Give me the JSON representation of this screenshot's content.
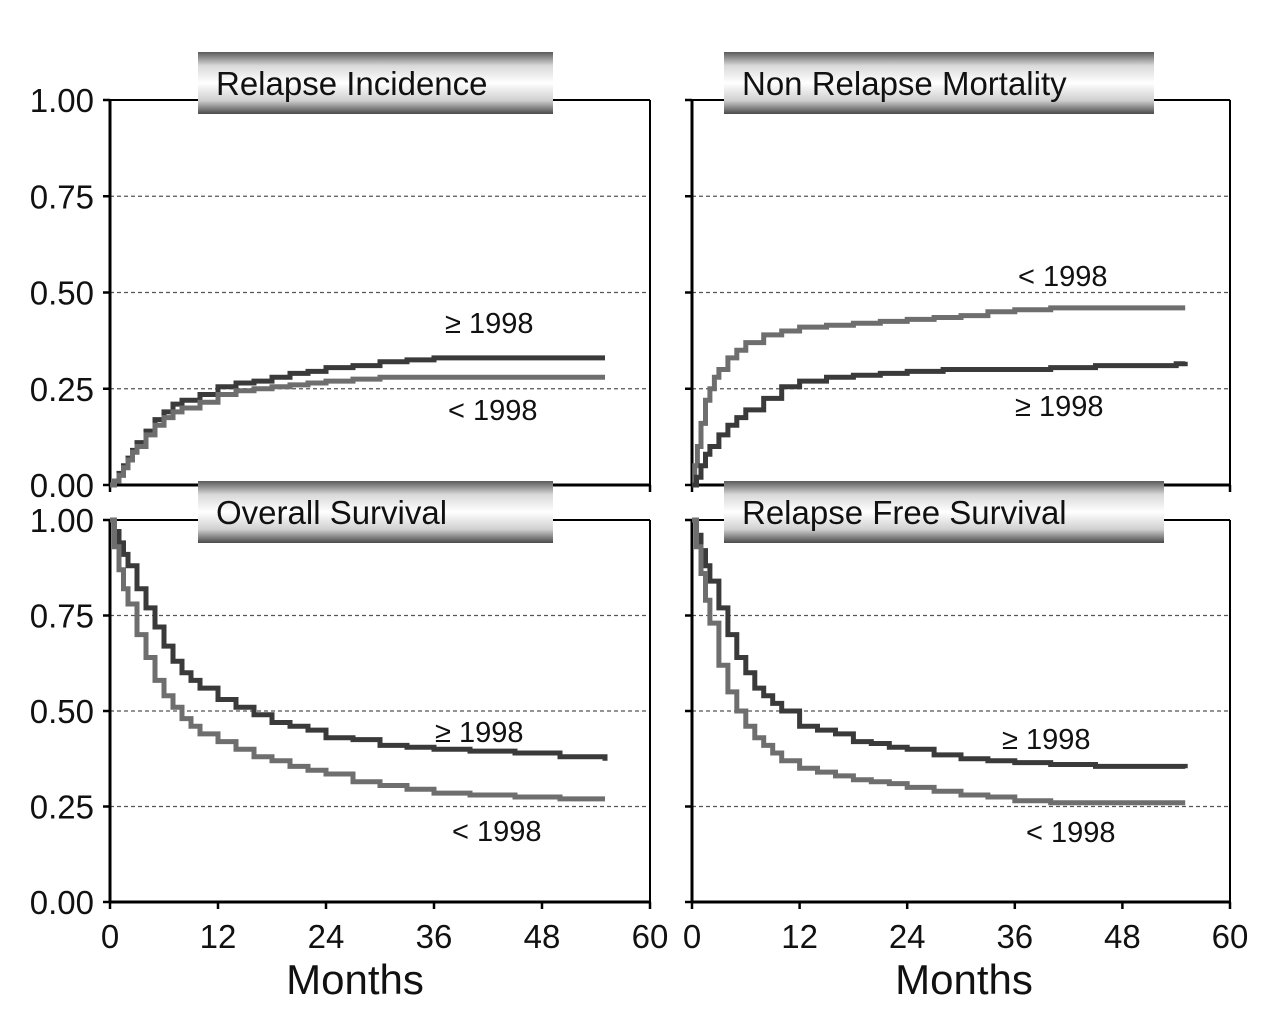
{
  "chart_data": {
    "type": "line",
    "style": "step",
    "xlabel": "Months",
    "xticks": [
      "0",
      "12",
      "24",
      "36",
      "48",
      "60"
    ],
    "yticks": [
      "0.00",
      "0.25",
      "0.50",
      "0.75",
      "1.00"
    ],
    "xlim": [
      0,
      60
    ],
    "ylim": [
      0,
      1
    ],
    "grid": "dashed horizontal at 0.25, 0.50, 0.75",
    "colors": {
      "after": "#3a3a3a",
      "before": "#6e6e6e",
      "grid": "#555555",
      "axis": "#000000"
    },
    "panels": [
      {
        "title": "Relapse Incidence",
        "series": [
          {
            "name": "≥ 1998",
            "label": "≥ 1998",
            "x": [
              0,
              0.5,
              1,
              1.5,
              2,
              2.5,
              3,
              4,
              5,
              6,
              7,
              8,
              10,
              12,
              14,
              16,
              18,
              20,
              22,
              24,
              27,
              30,
              33,
              36,
              40,
              45,
              50,
              55
            ],
            "y": [
              0,
              0.01,
              0.03,
              0.05,
              0.07,
              0.09,
              0.11,
              0.14,
              0.17,
              0.19,
              0.21,
              0.22,
              0.235,
              0.255,
              0.265,
              0.27,
              0.28,
              0.29,
              0.295,
              0.305,
              0.31,
              0.32,
              0.325,
              0.33,
              0.33,
              0.33,
              0.33,
              0.33
            ]
          },
          {
            "name": "< 1998",
            "label": "< 1998",
            "x": [
              0,
              0.5,
              1,
              1.5,
              2,
              2.5,
              3,
              4,
              5,
              6,
              7,
              8,
              10,
              12,
              14,
              16,
              18,
              20,
              22,
              24,
              27,
              30,
              33,
              36,
              40,
              45,
              50,
              55
            ],
            "y": [
              0,
              0.01,
              0.025,
              0.045,
              0.065,
              0.085,
              0.1,
              0.13,
              0.155,
              0.175,
              0.19,
              0.2,
              0.215,
              0.235,
              0.245,
              0.25,
              0.255,
              0.26,
              0.265,
              0.27,
              0.275,
              0.28,
              0.28,
              0.28,
              0.28,
              0.28,
              0.28,
              0.28
            ]
          }
        ]
      },
      {
        "title": "Non Relapse Mortality",
        "series": [
          {
            "name": "< 1998",
            "label": "< 1998",
            "x": [
              0,
              0.3,
              0.6,
              1,
              1.5,
              2,
              2.5,
              3,
              4,
              5,
              6,
              8,
              10,
              12,
              15,
              18,
              21,
              24,
              27,
              30,
              33,
              36,
              40,
              45,
              50,
              55
            ],
            "y": [
              0,
              0.05,
              0.1,
              0.16,
              0.22,
              0.25,
              0.28,
              0.3,
              0.33,
              0.35,
              0.37,
              0.39,
              0.4,
              0.41,
              0.415,
              0.42,
              0.425,
              0.43,
              0.435,
              0.44,
              0.45,
              0.455,
              0.46,
              0.46,
              0.46,
              0.46
            ]
          },
          {
            "name": "≥ 1998",
            "label": "≥ 1998",
            "x": [
              0,
              0.5,
              1,
              1.5,
              2,
              3,
              4,
              5,
              6,
              8,
              10,
              12,
              15,
              18,
              21,
              24,
              28,
              32,
              36,
              40,
              45,
              50,
              54,
              55
            ],
            "y": [
              0,
              0.02,
              0.05,
              0.08,
              0.1,
              0.13,
              0.155,
              0.175,
              0.195,
              0.225,
              0.255,
              0.27,
              0.28,
              0.285,
              0.29,
              0.295,
              0.3,
              0.3,
              0.3,
              0.305,
              0.31,
              0.31,
              0.315,
              0.32
            ]
          }
        ]
      },
      {
        "title": "Overall Survival",
        "series": [
          {
            "name": "≥ 1998",
            "label": "≥ 1998",
            "x": [
              0,
              0.5,
              1,
              1.5,
              2,
              3,
              4,
              5,
              6,
              7,
              8,
              9,
              10,
              12,
              14,
              16,
              18,
              20,
              22,
              24,
              27,
              30,
              33,
              36,
              40,
              45,
              50,
              55
            ],
            "y": [
              1,
              0.97,
              0.94,
              0.91,
              0.88,
              0.82,
              0.77,
              0.72,
              0.67,
              0.63,
              0.6,
              0.58,
              0.56,
              0.53,
              0.51,
              0.49,
              0.47,
              0.46,
              0.45,
              0.43,
              0.425,
              0.41,
              0.405,
              0.4,
              0.395,
              0.39,
              0.38,
              0.37
            ]
          },
          {
            "name": "< 1998",
            "label": "< 1998",
            "x": [
              0,
              0.5,
              1,
              1.5,
              2,
              3,
              4,
              5,
              6,
              7,
              8,
              9,
              10,
              12,
              14,
              16,
              18,
              20,
              22,
              24,
              27,
              30,
              33,
              36,
              40,
              45,
              50,
              55
            ],
            "y": [
              1,
              0.93,
              0.87,
              0.82,
              0.78,
              0.7,
              0.64,
              0.58,
              0.54,
              0.51,
              0.48,
              0.46,
              0.44,
              0.42,
              0.4,
              0.38,
              0.37,
              0.355,
              0.345,
              0.335,
              0.315,
              0.305,
              0.295,
              0.285,
              0.28,
              0.275,
              0.27,
              0.27
            ]
          }
        ]
      },
      {
        "title": "Relapse Free Survival",
        "series": [
          {
            "name": "≥ 1998",
            "label": "≥ 1998",
            "x": [
              0,
              0.5,
              1,
              1.5,
              2,
              3,
              4,
              5,
              6,
              7,
              8,
              9,
              10,
              12,
              14,
              16,
              18,
              20,
              22,
              24,
              27,
              30,
              33,
              36,
              40,
              45,
              50,
              55
            ],
            "y": [
              1,
              0.96,
              0.92,
              0.88,
              0.84,
              0.77,
              0.7,
              0.64,
              0.6,
              0.56,
              0.54,
              0.52,
              0.5,
              0.46,
              0.45,
              0.44,
              0.42,
              0.415,
              0.405,
              0.4,
              0.385,
              0.375,
              0.37,
              0.365,
              0.36,
              0.355,
              0.355,
              0.35
            ]
          },
          {
            "name": "< 1998",
            "label": "< 1998",
            "x": [
              0,
              0.5,
              1,
              1.5,
              2,
              3,
              4,
              5,
              6,
              7,
              8,
              9,
              10,
              12,
              14,
              16,
              18,
              20,
              22,
              24,
              27,
              30,
              33,
              36,
              40,
              45,
              50,
              55
            ],
            "y": [
              1,
              0.93,
              0.86,
              0.79,
              0.73,
              0.62,
              0.55,
              0.5,
              0.46,
              0.43,
              0.41,
              0.39,
              0.37,
              0.35,
              0.34,
              0.33,
              0.32,
              0.315,
              0.31,
              0.3,
              0.29,
              0.28,
              0.275,
              0.265,
              0.26,
              0.26,
              0.26,
              0.26
            ]
          }
        ]
      }
    ]
  }
}
